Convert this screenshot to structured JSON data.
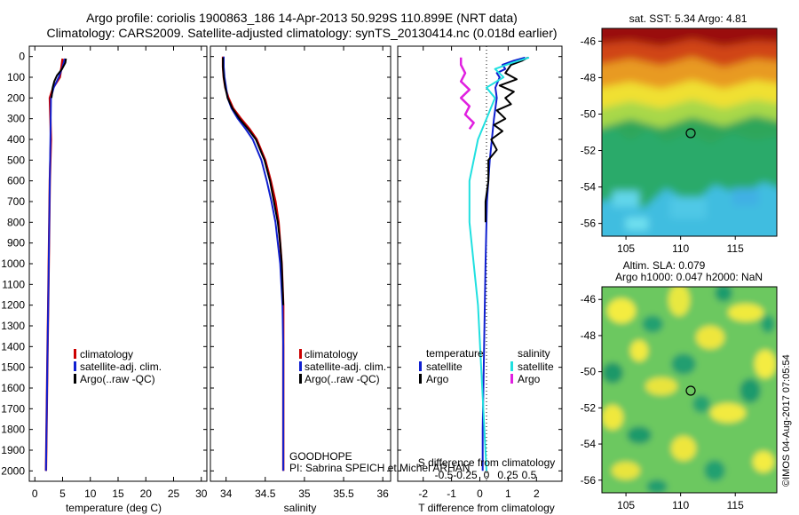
{
  "header": {
    "line1": "Argo profile: coriolis 1900863_186 14-Apr-2013 50.929S 110.899E (NRT data)",
    "line2": "Climatology: CARS2009. Satellite-adjusted climatology: synTS_20130414.nc (0.018d earlier)"
  },
  "colors": {
    "climatology": "#cc0000",
    "satellite": "#1020d0",
    "argo": "#000000",
    "sal_satellite": "#20e0e0",
    "sal_argo": "#e020e0"
  },
  "depth_ticks": [
    "0",
    "100",
    "200",
    "300",
    "400",
    "500",
    "600",
    "700",
    "800",
    "900",
    "1000",
    "1100",
    "1200",
    "1300",
    "1400",
    "1500",
    "1600",
    "1700",
    "1800",
    "1900",
    "2000"
  ],
  "legend": {
    "climatology": "climatology",
    "satellite_adj": "satellite-adj. clim.",
    "argo": "Argo(..raw -QC)",
    "temperature_head": "temperature",
    "salinity_head": "salinity",
    "satellite": "satellite",
    "argo_short": "Argo"
  },
  "platform": {
    "project": "GOODHOPE",
    "pi": "PI: Sabrina SPEICH et Michel ARHAN"
  },
  "sst_map": {
    "title": "sat. SST: 5.34  Argo: 4.81",
    "lat_ticks": [
      "-46",
      "-48",
      "-50",
      "-52",
      "-54",
      "-56"
    ],
    "lon_ticks": [
      "105",
      "110",
      "115"
    ]
  },
  "sla_map": {
    "title1": "Altim. SLA: 0.079",
    "title2": "Argo h1000: 0.047 h2000: NaN",
    "lat_ticks": [
      "-46",
      "-48",
      "-50",
      "-52",
      "-54",
      "-56"
    ],
    "lon_ticks": [
      "105",
      "110",
      "115"
    ]
  },
  "credit": "©IMOS 04-Aug-2017 07:05:54",
  "chart_data": [
    {
      "type": "line",
      "id": "temperature",
      "xlabel": "temperature (deg C)",
      "xlim": [
        -1,
        31
      ],
      "ylim": [
        2050,
        0
      ],
      "xticks": [
        "0",
        "5",
        "10",
        "15",
        "20",
        "25",
        "30"
      ],
      "xtick_values": [
        0,
        5,
        10,
        15,
        20,
        25,
        30
      ],
      "series": [
        {
          "name": "climatology",
          "color": "#cc0000",
          "width": 2.5,
          "depth": [
            10,
            50,
            100,
            150,
            200,
            300,
            400,
            600,
            800,
            1000,
            1200,
            1400,
            1600,
            1800,
            2000
          ],
          "values": [
            5.0,
            4.8,
            4.5,
            3.3,
            2.7,
            2.8,
            2.9,
            2.7,
            2.6,
            2.5,
            2.4,
            2.3,
            2.2,
            2.1,
            2.0
          ]
        },
        {
          "name": "satellite-adj. clim.",
          "color": "#1020d0",
          "width": 2,
          "depth": [
            10,
            50,
            100,
            150,
            200,
            300,
            400,
            600,
            800,
            1000,
            1200,
            1400,
            1600,
            1800,
            2000
          ],
          "values": [
            5.4,
            5.0,
            4.3,
            3.4,
            2.9,
            2.85,
            2.8,
            2.7,
            2.6,
            2.5,
            2.4,
            2.3,
            2.2,
            2.1,
            2.0
          ]
        },
        {
          "name": "Argo(..raw -QC)",
          "color": "#000000",
          "width": 2,
          "depth": [
            10,
            30,
            60,
            90,
            120,
            150,
            200
          ],
          "values": [
            5.6,
            5.5,
            4.9,
            4.0,
            3.5,
            3.2,
            3.0
          ]
        }
      ]
    },
    {
      "type": "line",
      "id": "salinity",
      "xlabel": "salinity",
      "xlim": [
        33.8,
        36.1
      ],
      "ylim": [
        2050,
        0
      ],
      "xticks": [
        "34",
        "34.5",
        "35",
        "35.5",
        "36"
      ],
      "xtick_values": [
        34,
        34.5,
        35,
        35.5,
        36
      ],
      "series": [
        {
          "name": "climatology",
          "color": "#cc0000",
          "width": 2.5,
          "depth": [
            0,
            50,
            100,
            150,
            200,
            250,
            300,
            350,
            400,
            500,
            600,
            700,
            800,
            1000,
            1200,
            1400,
            1600,
            1800,
            2000
          ],
          "values": [
            33.96,
            33.96,
            33.97,
            33.99,
            34.03,
            34.09,
            34.19,
            34.3,
            34.39,
            34.5,
            34.57,
            34.63,
            34.67,
            34.71,
            34.73,
            34.73,
            34.73,
            34.73,
            34.73
          ]
        },
        {
          "name": "satellite-adj. clim.",
          "color": "#1020d0",
          "width": 2,
          "depth": [
            0,
            50,
            100,
            150,
            200,
            250,
            300,
            350,
            400,
            500,
            600,
            700,
            800,
            1000,
            1200,
            1400,
            1600,
            1800,
            2000
          ],
          "values": [
            33.97,
            33.97,
            33.98,
            34.0,
            34.02,
            34.07,
            34.15,
            34.25,
            34.34,
            34.45,
            34.52,
            34.58,
            34.63,
            34.69,
            34.72,
            34.73,
            34.73,
            34.73,
            34.73
          ]
        },
        {
          "name": "Argo(..raw -QC)",
          "color": "#000000",
          "width": 2,
          "depth": [
            5,
            50,
            100,
            150,
            200,
            250,
            300,
            350,
            400,
            500,
            600,
            700,
            800,
            900,
            1000,
            1100,
            1200
          ],
          "values": [
            33.96,
            33.96,
            33.97,
            33.99,
            34.02,
            34.08,
            34.17,
            34.28,
            34.38,
            34.49,
            34.56,
            34.61,
            34.66,
            34.69,
            34.71,
            34.72,
            34.73
          ]
        }
      ]
    },
    {
      "type": "line",
      "id": "differences",
      "xlabel": "T difference from climatology",
      "xlabel2": "S difference from climatology",
      "xlim": [
        -2.9,
        2.9
      ],
      "ylim": [
        2050,
        0
      ],
      "xticks": [
        "-2",
        "-1",
        "0",
        "1",
        "2"
      ],
      "xtick_values": [
        -2,
        -1,
        0,
        1,
        2
      ],
      "s_xticks": [
        "-0.5",
        "-0.25",
        "0",
        "0.25",
        "0.5"
      ],
      "series": [
        {
          "name": "temperature satellite",
          "color": "#1020d0",
          "width": 2,
          "depth": [
            5,
            20,
            40,
            60,
            80,
            100,
            150,
            200,
            300,
            500,
            700,
            1000,
            1400,
            1800,
            2000
          ],
          "values": [
            1.6,
            1.2,
            0.8,
            0.9,
            0.6,
            0.7,
            0.55,
            0.6,
            0.5,
            0.35,
            0.25,
            0.2,
            0.15,
            0.1,
            0.1
          ]
        },
        {
          "name": "temperature Argo",
          "color": "#000000",
          "width": 2,
          "depth": [
            5,
            20,
            40,
            60,
            80,
            110,
            140,
            170,
            200,
            230,
            260,
            300,
            330,
            360,
            400,
            450,
            500,
            600,
            700,
            800
          ],
          "values": [
            1.7,
            1.5,
            1.1,
            1.0,
            0.9,
            1.3,
            0.7,
            1.2,
            0.9,
            1.1,
            0.6,
            0.9,
            0.5,
            0.8,
            0.4,
            0.6,
            0.3,
            0.3,
            0.2,
            0.2
          ]
        },
        {
          "name": "salinity satellite",
          "color": "#20e0e0",
          "width": 2,
          "depth": [
            5,
            30,
            60,
            100,
            150,
            200,
            300,
            400,
            600,
            800,
            1000,
            1200,
            1600,
            2000
          ],
          "values": [
            0.5,
            0.3,
            0.1,
            0.2,
            0.0,
            0.1,
            0.0,
            -0.1,
            -0.2,
            -0.2,
            -0.15,
            -0.1,
            -0.05,
            0.0
          ]
        },
        {
          "name": "salinity Argo",
          "color": "#e020e0",
          "width": 2.5,
          "depth": [
            5,
            40,
            80,
            120,
            160,
            200,
            240,
            280,
            320,
            350
          ],
          "values": [
            -0.3,
            -0.3,
            -0.25,
            -0.3,
            -0.2,
            -0.3,
            -0.2,
            -0.25,
            -0.15,
            -0.2
          ]
        }
      ]
    }
  ]
}
